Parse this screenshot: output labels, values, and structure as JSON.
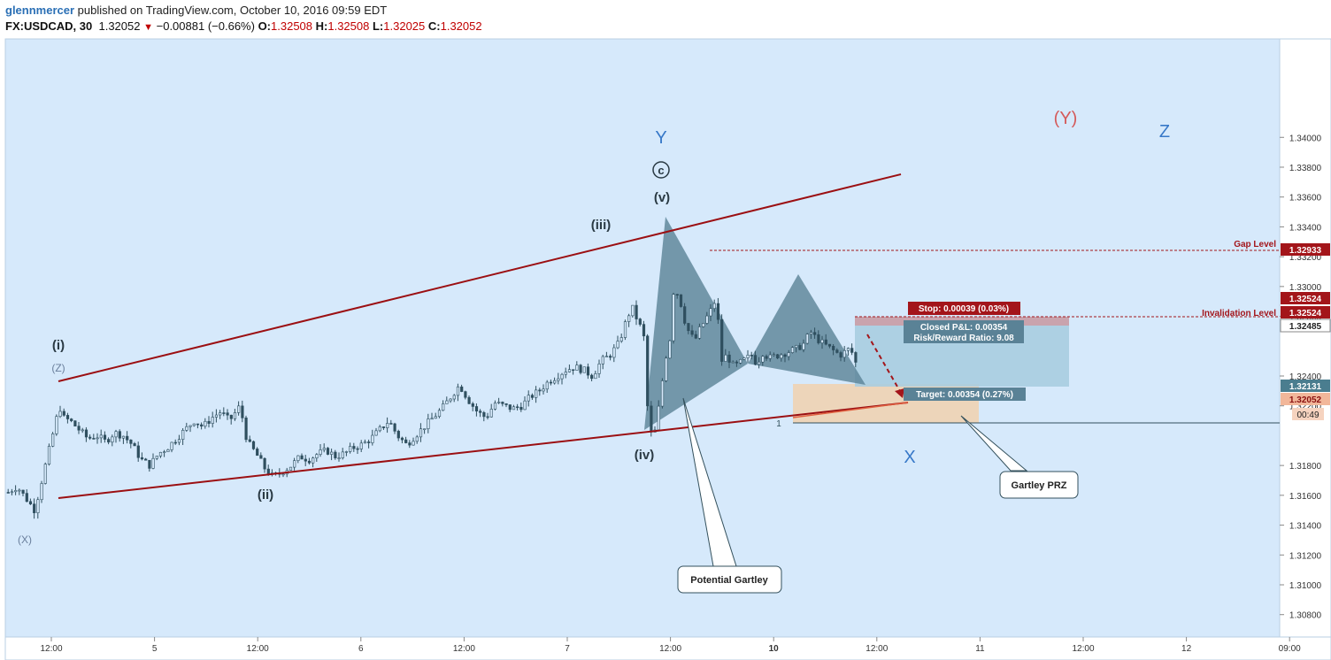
{
  "header": {
    "user": "glennmercer",
    "published": " published on TradingView.com, October 10, 2016 09:59 EDT",
    "symbol": "FX:USDCAD, 30",
    "last": "1.32052",
    "change": "−0.00881 (−0.66%)",
    "o_label": "O:",
    "o_value": "1.32508",
    "h_label": "H:",
    "h_value": "1.32508",
    "l_label": "L:",
    "l_value": "1.32025",
    "c_label": "C:",
    "c_value": "1.32052"
  },
  "colors": {
    "background": "#d6e9fb",
    "channel": "#9b0f12",
    "candle": "#2f4f5f",
    "pattern": "#5a8296",
    "wave_blue": "#3778c8",
    "wave_red": "#d45a5a",
    "gap_badge": "#a3151a",
    "target_zone": "#f0d3b3",
    "profit_zone": "#a9cde0",
    "stop_zone": "#c9a3ad"
  },
  "chart_data": {
    "type": "candlestick",
    "symbol": "FX:USDCAD",
    "timeframe": "30",
    "y_axis": {
      "ticks": [
        "1.34000",
        "1.33800",
        "1.33600",
        "1.33400",
        "1.33200",
        "1.33000",
        "1.32800",
        "1.32400",
        "1.32200",
        "1.31800",
        "1.31600",
        "1.31400",
        "1.31200",
        "1.31000",
        "1.30800"
      ],
      "ylim": [
        1.3065,
        1.3466
      ]
    },
    "x_axis": {
      "ticks": [
        "12:00",
        "5",
        "12:00",
        "6",
        "12:00",
        "7",
        "12:00",
        "10",
        "12:00",
        "11",
        "12:00",
        "12",
        "09:00"
      ]
    },
    "price_labels": {
      "gap": "1.32933",
      "stop_upper": "1.32524",
      "stop_lower": "1.32524",
      "entry": "1.32485",
      "current_blue": "1.32131",
      "close": "1.32052",
      "countdown": "00:49"
    },
    "levels": [
      {
        "name": "Gap Level",
        "value": 1.32933
      },
      {
        "name": "Invalidation Level",
        "value": 1.32485
      }
    ],
    "position": {
      "stop_text": "Stop: 0.00039 (0.03%)",
      "pnl_text": "Closed P&L: 0.00354",
      "rr_text": "Risk/Reward Ratio: 9.08",
      "target_text": "Target: 0.00354 (0.27%)"
    },
    "wave_labels": [
      "(i)",
      "(ii)",
      "(iii)",
      "(iv)",
      "(v)",
      "c",
      "Y",
      "(Y)",
      "Z",
      "X",
      "(Z)",
      "(X)"
    ],
    "level_one": "1",
    "callouts": [
      "Potential Gartley",
      "Gartley PRZ"
    ],
    "series": [
      {
        "name": "USDCAD",
        "points": [
          [
            0,
            1.3162
          ],
          [
            10,
            1.3166
          ],
          [
            20,
            1.3158
          ],
          [
            30,
            1.315
          ],
          [
            40,
            1.3175
          ],
          [
            50,
            1.32
          ],
          [
            58,
            1.322
          ],
          [
            62,
            1.3212
          ],
          [
            70,
            1.321
          ],
          [
            80,
            1.3204
          ],
          [
            90,
            1.3198
          ],
          [
            100,
            1.32
          ],
          [
            110,
            1.3196
          ],
          [
            120,
            1.3202
          ],
          [
            130,
            1.32
          ],
          [
            140,
            1.3194
          ],
          [
            150,
            1.3184
          ],
          [
            160,
            1.318
          ],
          [
            170,
            1.3188
          ],
          [
            180,
            1.3192
          ],
          [
            190,
            1.3198
          ],
          [
            200,
            1.3204
          ],
          [
            210,
            1.321
          ],
          [
            220,
            1.3206
          ],
          [
            230,
            1.3212
          ],
          [
            240,
            1.3216
          ],
          [
            250,
            1.321
          ],
          [
            262,
            1.322
          ],
          [
            270,
            1.3196
          ],
          [
            280,
            1.3188
          ],
          [
            290,
            1.3178
          ],
          [
            300,
            1.3172
          ],
          [
            310,
            1.3176
          ],
          [
            320,
            1.318
          ],
          [
            330,
            1.3186
          ],
          [
            340,
            1.3184
          ],
          [
            350,
            1.3188
          ],
          [
            360,
            1.319
          ],
          [
            370,
            1.3186
          ],
          [
            380,
            1.3188
          ],
          [
            390,
            1.3192
          ],
          [
            400,
            1.3194
          ],
          [
            410,
            1.3198
          ],
          [
            420,
            1.3204
          ],
          [
            430,
            1.321
          ],
          [
            440,
            1.32
          ],
          [
            450,
            1.3194
          ],
          [
            460,
            1.32
          ],
          [
            470,
            1.3206
          ],
          [
            480,
            1.3212
          ],
          [
            490,
            1.3218
          ],
          [
            500,
            1.3226
          ],
          [
            510,
            1.3234
          ],
          [
            520,
            1.3224
          ],
          [
            530,
            1.3216
          ],
          [
            540,
            1.3212
          ],
          [
            550,
            1.3222
          ],
          [
            560,
            1.322
          ],
          [
            570,
            1.3218
          ],
          [
            580,
            1.322
          ],
          [
            590,
            1.3226
          ],
          [
            600,
            1.323
          ],
          [
            610,
            1.3236
          ],
          [
            620,
            1.324
          ],
          [
            630,
            1.3244
          ],
          [
            640,
            1.3246
          ],
          [
            650,
            1.3244
          ],
          [
            660,
            1.324
          ],
          [
            670,
            1.325
          ],
          [
            680,
            1.3254
          ],
          [
            690,
            1.3262
          ],
          [
            700,
            1.328
          ],
          [
            705,
            1.3286
          ],
          [
            712,
            1.3276
          ],
          [
            718,
            1.3268
          ],
          [
            724,
            1.3202
          ],
          [
            730,
            1.32
          ],
          [
            736,
            1.3222
          ],
          [
            742,
            1.325
          ],
          [
            748,
            1.3266
          ],
          [
            752,
            1.3298
          ],
          [
            758,
            1.3294
          ],
          [
            764,
            1.3278
          ],
          [
            770,
            1.3268
          ],
          [
            776,
            1.3264
          ],
          [
            782,
            1.3272
          ],
          [
            788,
            1.3278
          ],
          [
            794,
            1.3284
          ],
          [
            800,
            1.3292
          ],
          [
            806,
            1.325
          ],
          [
            812,
            1.3254
          ],
          [
            820,
            1.3246
          ],
          [
            830,
            1.325
          ],
          [
            840,
            1.3254
          ],
          [
            846,
            1.3248
          ],
          [
            852,
            1.3256
          ],
          [
            860,
            1.3252
          ],
          [
            870,
            1.3254
          ],
          [
            880,
            1.3256
          ],
          [
            890,
            1.3258
          ],
          [
            900,
            1.3262
          ],
          [
            906,
            1.327
          ],
          [
            912,
            1.3266
          ],
          [
            920,
            1.3262
          ],
          [
            930,
            1.3258
          ],
          [
            940,
            1.3254
          ],
          [
            950,
            1.3258
          ],
          [
            956,
            1.3254
          ],
          [
            961,
            1.3238
          ],
          [
            966,
            1.3205
          ]
        ]
      }
    ]
  }
}
